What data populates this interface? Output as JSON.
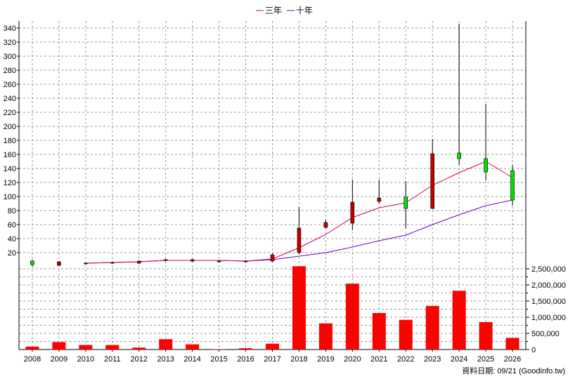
{
  "chart_data": {
    "type": "candlestick-volume",
    "legend": [
      {
        "name": "三年",
        "color": "#d0005e"
      },
      {
        "name": "十年",
        "color": "#6a00d0"
      }
    ],
    "categories": [
      "2008",
      "2009",
      "2010",
      "2011",
      "2012",
      "2013",
      "2014",
      "2015",
      "2016",
      "2017",
      "2018",
      "2019",
      "2020",
      "2021",
      "2022",
      "2023",
      "2024",
      "2025",
      "2026"
    ],
    "price_axis": {
      "ylim": [
        0,
        350
      ],
      "ticks": [
        20,
        40,
        60,
        80,
        100,
        120,
        140,
        160,
        180,
        200,
        220,
        240,
        260,
        280,
        300,
        320,
        340
      ]
    },
    "volume_axis": {
      "ylim": [
        0,
        2500000
      ],
      "ticks": [
        0,
        500000,
        1000000,
        1500000,
        2000000,
        2500000
      ],
      "tick_labels": [
        "0",
        "500,000",
        "1,000,000",
        "1,500,000",
        "2,000,000",
        "2,500,000"
      ]
    },
    "candles": [
      {
        "open": 3,
        "close": 8,
        "high": 10,
        "low": 0
      },
      {
        "open": 7,
        "close": 2,
        "high": 8,
        "low": 1
      },
      {
        "open": 5,
        "close": 4,
        "high": 6,
        "low": 3
      },
      {
        "open": 6,
        "close": 5,
        "high": 7,
        "low": 4
      },
      {
        "open": 8,
        "close": 5,
        "high": 9,
        "low": 4
      },
      {
        "open": 10,
        "close": 9,
        "high": 11,
        "low": 8
      },
      {
        "open": 10,
        "close": 8,
        "high": 11,
        "low": 7
      },
      {
        "open": 8,
        "close": 7,
        "high": 9,
        "low": 6
      },
      {
        "open": 8,
        "close": 7,
        "high": 9,
        "low": 6
      },
      {
        "open": 17,
        "close": 8,
        "high": 19,
        "low": 7
      },
      {
        "open": 55,
        "close": 20,
        "high": 85,
        "low": 18
      },
      {
        "open": 63,
        "close": 56,
        "high": 67,
        "low": 55
      },
      {
        "open": 92,
        "close": 62,
        "high": 124,
        "low": 52
      },
      {
        "open": 98,
        "close": 93,
        "high": 124,
        "low": 90
      },
      {
        "open": 83,
        "close": 99,
        "high": 122,
        "low": 55
      },
      {
        "open": 161,
        "close": 83,
        "high": 182,
        "low": 82
      },
      {
        "open": 154,
        "close": 162,
        "high": 346,
        "low": 145
      },
      {
        "open": 135,
        "close": 154,
        "high": 232,
        "low": 123
      },
      {
        "open": 95,
        "close": 137,
        "high": 145,
        "low": 87
      }
    ],
    "ma3": [
      null,
      null,
      5,
      6,
      7,
      9,
      9,
      9,
      8,
      11,
      27,
      46,
      70,
      84,
      91,
      116,
      134,
      150,
      127
    ],
    "ma10": [
      null,
      null,
      5,
      6,
      7,
      9,
      9,
      9,
      8,
      10,
      15,
      20,
      28,
      37,
      45,
      60,
      74,
      87,
      95
    ],
    "volumes": [
      90000,
      230000,
      140000,
      140000,
      60000,
      320000,
      160000,
      10000,
      40000,
      180000,
      2580000,
      810000,
      2040000,
      1130000,
      920000,
      1350000,
      1820000,
      850000,
      360000
    ]
  },
  "footer": "資料日期: 09/21 (Goodinfo.tw)"
}
